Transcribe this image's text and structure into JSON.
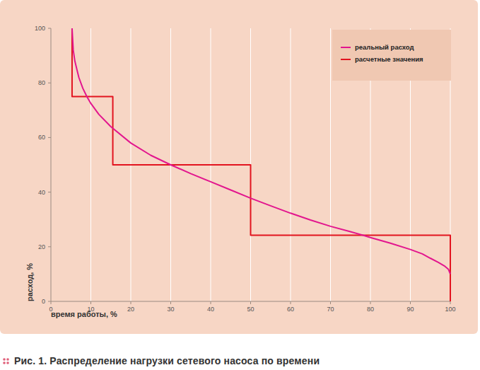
{
  "chart_data": {
    "type": "line",
    "title": "Рис. 1. Распределение нагрузки сетевого насоса по времени",
    "x_label": "время работы, %",
    "y_label": "расход, %",
    "xlim": [
      0,
      100
    ],
    "ylim": [
      0,
      100
    ],
    "xticks": [
      0,
      10,
      20,
      30,
      40,
      50,
      60,
      70,
      80,
      90,
      100
    ],
    "yticks": [
      0,
      20,
      40,
      60,
      80,
      100
    ],
    "grid": true,
    "legend": "top-right",
    "series": [
      {
        "name": "реальный расход",
        "color": "#e2168e",
        "line_style": "solid",
        "x": [
          5.3,
          5.6,
          6,
          6.5,
          7,
          8,
          9,
          10,
          12,
          15,
          20,
          25,
          30,
          35,
          40,
          45,
          50,
          55,
          60,
          65,
          70,
          75,
          78,
          80,
          85,
          90,
          93,
          95,
          97,
          98.5,
          99.5,
          100
        ],
        "values": [
          100,
          92,
          88,
          85,
          82,
          78,
          75,
          72.5,
          68.5,
          64,
          58,
          53.5,
          50,
          46.8,
          43.8,
          40.8,
          37.8,
          35,
          32.3,
          29.8,
          27.5,
          25.5,
          24.3,
          23.4,
          21.3,
          19,
          17.4,
          15.8,
          14.3,
          13,
          11.8,
          10
        ]
      },
      {
        "name": "расчетные значения",
        "color": "#e2141f",
        "line_style": "step",
        "x": [
          5.3,
          5.3,
          15.5,
          15.5,
          50,
          50,
          100,
          100
        ],
        "values": [
          100,
          75,
          75,
          50,
          50,
          24.2,
          24.2,
          0
        ]
      }
    ]
  }
}
